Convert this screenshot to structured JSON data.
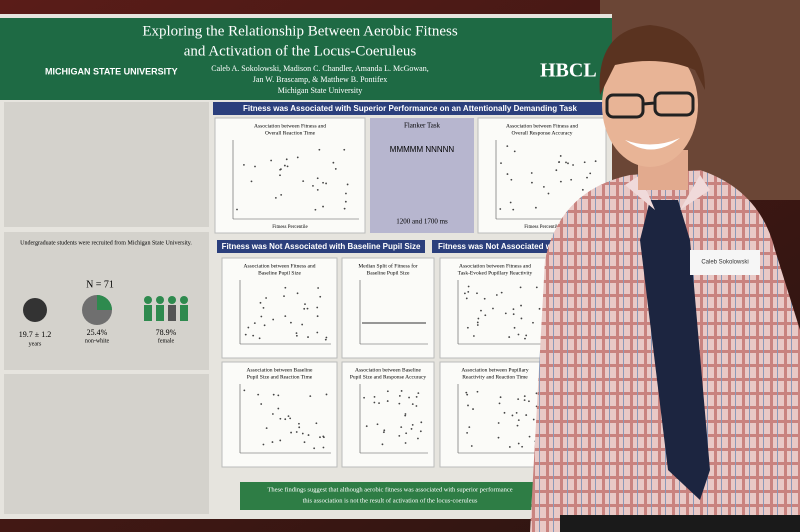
{
  "poster": {
    "logo": "MICHIGAN STATE UNIVERSITY",
    "title_lines": [
      "Exploring the Relationship Between Aerobic Fitness",
      "and Activation of the Locus-Coeruleus"
    ],
    "authors": [
      "Caleb A. Sokolowski, Madison C. Chandler, Amanda L. McGowan,",
      "Jan W. Brascamp, & Matthew B. Pontifex"
    ],
    "affiliation": "Michigan State University",
    "lab": "HBCL",
    "sections": [
      "Fitness was Associated with Superior Performance on an Attentionally Demanding Task",
      "Fitness was Not Associated with Baseline Pupil Size",
      "Fitness was Not Associated with Pupil"
    ],
    "flanker": {
      "title": "Flanker Task",
      "timing": "1200 and 1700 ms"
    },
    "plots": [
      [
        "Association between Fitness and",
        "Overall Reaction Time"
      ],
      [
        "Association between Fitness and",
        "Overall Response Accuracy"
      ],
      [
        "Association between Fitness and",
        "Baseline Pupil Size"
      ],
      [
        "Median Split of Fitness for",
        "Baseline Pupil Size"
      ],
      [
        "Association between Fitness and",
        "Task-Evoked Pupillary Reactivity"
      ],
      [
        "Association between Baseline",
        "Pupil Size and Reaction Time"
      ],
      [
        "Association between Baseline",
        "Pupil Size and Response Accuracy"
      ],
      [
        "Association between Pupillary",
        "Reactivity and Reaction Time"
      ]
    ],
    "x_label": "Fitness Percentile",
    "demographics": {
      "n": "N = 71",
      "age": "19.7 ± 1.2",
      "age_unit": "years",
      "race": "25.4%",
      "race_label": "non-white",
      "sex": "78.9%",
      "sex_label": "female"
    },
    "participants": "Undergraduate students were recruited from Michigan State University.",
    "conclusion": [
      "These findings suggest that although aerobic fitness was associated with superior performance",
      "this association is not the result of activation of the locus-coeruleus"
    ]
  },
  "name_tag": "Caleb Sokolowski"
}
